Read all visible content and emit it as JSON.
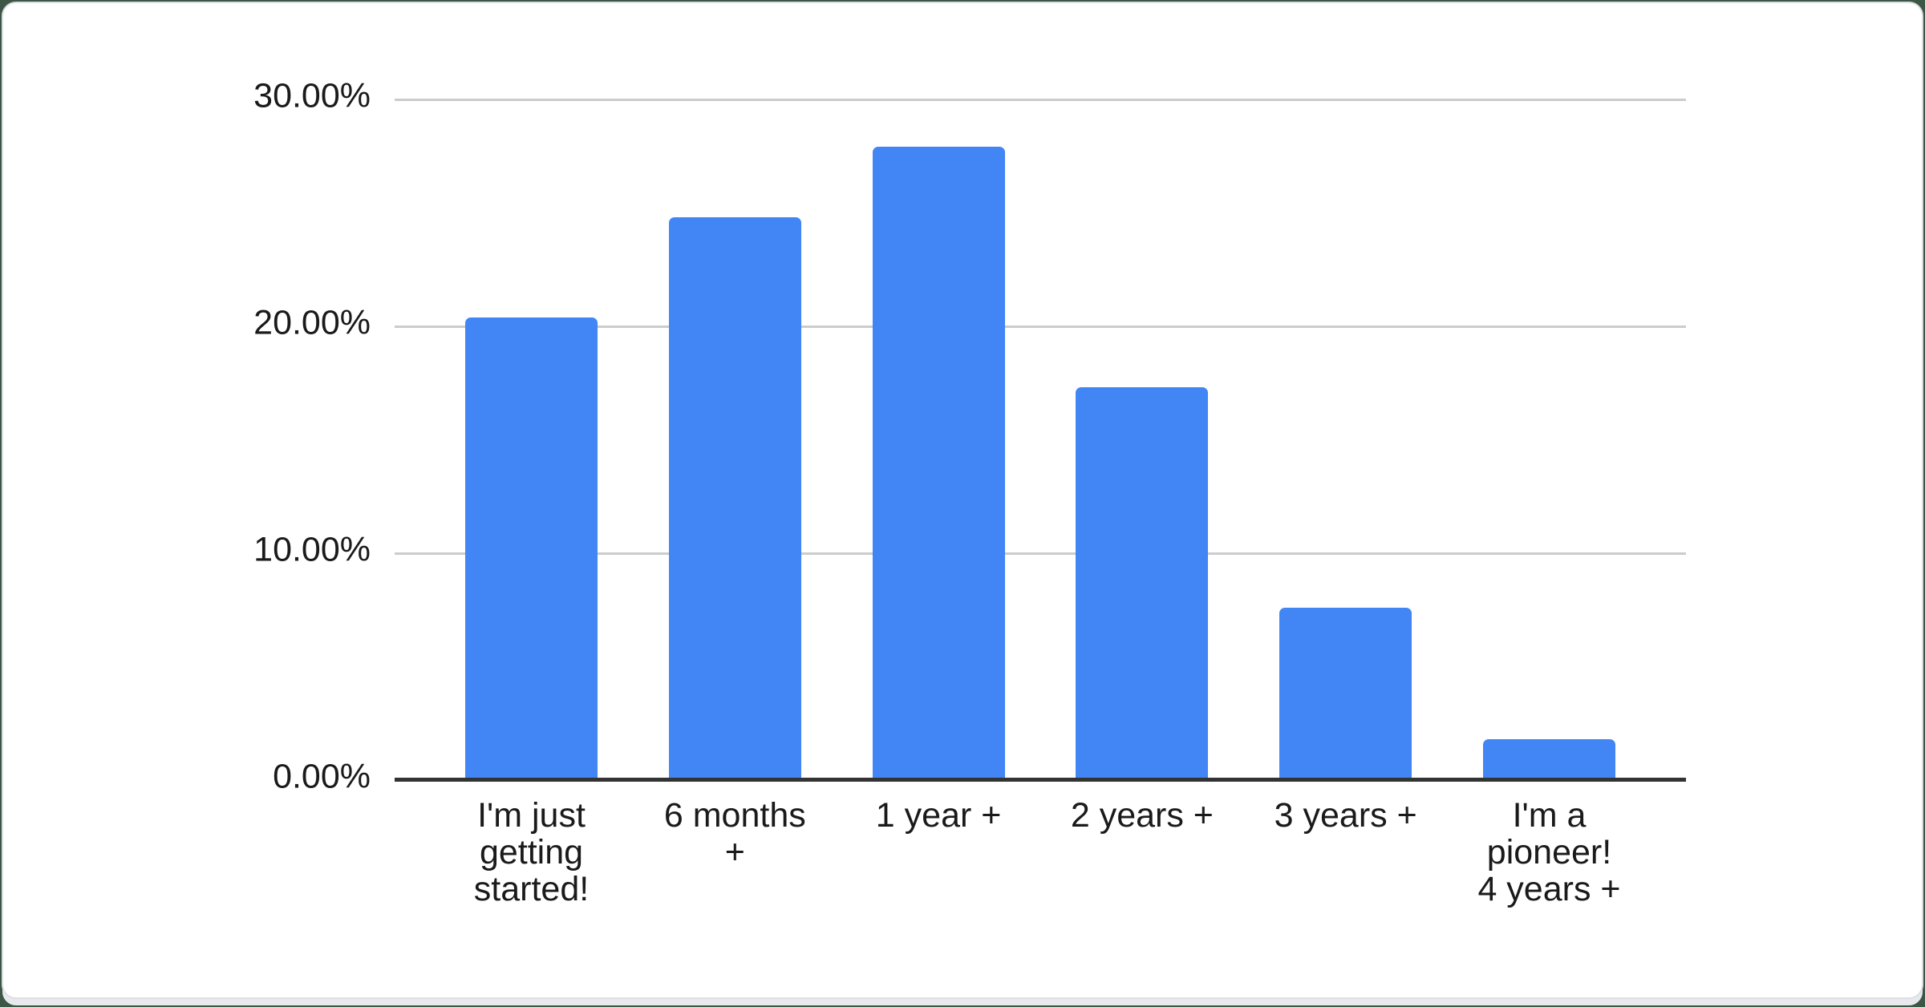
{
  "page": {
    "background_color": "#3d5747",
    "card_background": "#ffffff",
    "card_border_color": "#dcdfe3"
  },
  "chart_data": {
    "type": "bar",
    "title": "",
    "xlabel": "",
    "ylabel": "",
    "categories": [
      "I'm just getting started!",
      "6 months +",
      "1 year +",
      "2 years +",
      "3 years +",
      "I'm a pioneer! 4 years +"
    ],
    "category_label_lines": [
      [
        "I'm just",
        "getting",
        "started!"
      ],
      [
        "6 months",
        "+"
      ],
      [
        "1 year +"
      ],
      [
        "2 years +"
      ],
      [
        "3 years +"
      ],
      [
        "I'm a",
        "pioneer!",
        "4 years +"
      ]
    ],
    "values": [
      20.4,
      24.8,
      27.9,
      17.3,
      7.6,
      1.8
    ],
    "value_unit": "%",
    "ylim": [
      0,
      30
    ],
    "y_ticks": [
      {
        "value": 30,
        "label": "30.00%"
      },
      {
        "value": 20,
        "label": "20.00%"
      },
      {
        "value": 10,
        "label": "10.00%"
      },
      {
        "value": 0,
        "label": "0.00%"
      }
    ],
    "grid": true,
    "legend_position": "none",
    "bar_color": "#4285f4",
    "grid_color": "#cccccc",
    "axis_line_color": "#333333",
    "tick_label_color": "#1a1a1a"
  }
}
